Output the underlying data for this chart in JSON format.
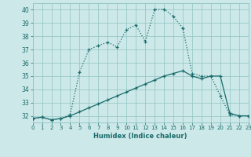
{
  "xlabel": "Humidex (Indice chaleur)",
  "background_color": "#cce8e8",
  "line_color": "#1a6b6b",
  "x_min": 0,
  "x_max": 23,
  "y_min": 31.5,
  "y_max": 40.5,
  "yticks": [
    32,
    33,
    34,
    35,
    36,
    37,
    38,
    39,
    40
  ],
  "xticks": [
    0,
    1,
    2,
    3,
    4,
    5,
    6,
    7,
    8,
    9,
    10,
    11,
    12,
    13,
    14,
    15,
    16,
    17,
    18,
    19,
    20,
    21,
    22,
    23
  ],
  "line1_x": [
    0,
    1,
    2,
    3,
    4,
    5,
    6,
    7,
    8,
    9,
    10,
    11,
    12,
    13,
    14,
    15,
    16,
    17,
    18,
    19,
    20,
    21,
    22,
    23
  ],
  "line1_y": [
    31.8,
    31.9,
    31.7,
    31.8,
    32.0,
    32.3,
    32.6,
    32.9,
    33.2,
    33.5,
    33.8,
    34.1,
    34.4,
    34.7,
    35.0,
    35.2,
    35.4,
    35.0,
    34.8,
    35.0,
    35.0,
    32.2,
    32.0,
    32.0
  ],
  "line2_x": [
    0,
    1,
    2,
    3,
    4,
    5,
    6,
    7,
    8,
    9,
    10,
    11,
    12,
    13,
    14,
    15,
    16,
    17,
    18,
    19,
    20,
    21,
    22,
    23
  ],
  "line2_y": [
    31.8,
    31.9,
    31.7,
    31.8,
    32.1,
    35.3,
    37.0,
    37.3,
    37.55,
    37.2,
    38.5,
    38.85,
    37.6,
    40.0,
    40.05,
    39.5,
    38.6,
    35.2,
    35.0,
    35.0,
    33.5,
    32.1,
    32.0,
    32.0
  ]
}
